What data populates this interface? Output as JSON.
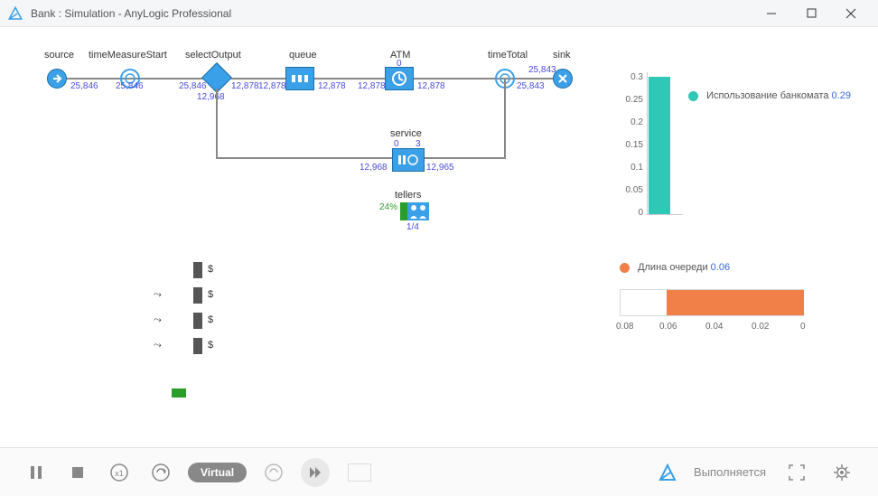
{
  "window": {
    "title": "Bank : Simulation - AnyLogic Professional"
  },
  "colors": {
    "block_fill": "#3aa0e8",
    "block_border": "#1d6fa8",
    "count_text": "#4a4ae0",
    "bar1_fill": "#2fc7b5",
    "bar2_fill": "#f08048",
    "gray": "#888888"
  },
  "flow": {
    "source": {
      "label": "source",
      "x": 58,
      "below": "25,846"
    },
    "timeMeasureStart": {
      "label": "timeMeasureStart",
      "x": 130,
      "below": "25,846"
    },
    "selectOutput": {
      "label": "selectOutput",
      "x": 220,
      "left": "25,846",
      "down": "12,968",
      "right": "12,878"
    },
    "queue": {
      "label": "queue",
      "x": 327,
      "left": "12,878",
      "right": "12,878"
    },
    "ATM": {
      "label": "ATM",
      "x": 438,
      "top0": "0",
      "left": "12,878",
      "right": "12,878"
    },
    "timeTotal": {
      "label": "timeTotal",
      "x": 555,
      "right": "25,843"
    },
    "sink": {
      "label": "sink",
      "x": 618,
      "left": "25,843"
    },
    "service": {
      "label": "service",
      "top0": "0",
      "top3": "3",
      "left": "12,968",
      "right": "12,965"
    },
    "tellers": {
      "label": "tellers",
      "pct": "24%",
      "ratio": "1/4"
    }
  },
  "chart_atm": {
    "type": "bar",
    "title": "Использование банкомата",
    "value_label": "0.29",
    "yticks": [
      "0.3",
      "0.25",
      "0.2",
      "0.15",
      "0.1",
      "0.05",
      "0"
    ],
    "ylim_max": 0.3,
    "bar_value": 0.29,
    "bar_color": "#2fc7b5",
    "axis_color": "#cccccc"
  },
  "chart_queue": {
    "type": "bar-horizontal",
    "title": "Длина очереди",
    "value_label": "0.06",
    "xticks": [
      "0.08",
      "0.06",
      "0.04",
      "0.02",
      "0"
    ],
    "bar_color": "#f08048",
    "axis_color": "#cccccc"
  },
  "waiting": {
    "rows": 4
  },
  "toolbar": {
    "pause": "pause-icon",
    "stop": "stop-icon",
    "x1": "x1-speed-icon",
    "speed_up": "speed-up-icon",
    "virtual_label": "Virtual",
    "speed_plus": "speed-plus-icon",
    "skip": "skip-icon",
    "status_text": "Выполняется"
  }
}
